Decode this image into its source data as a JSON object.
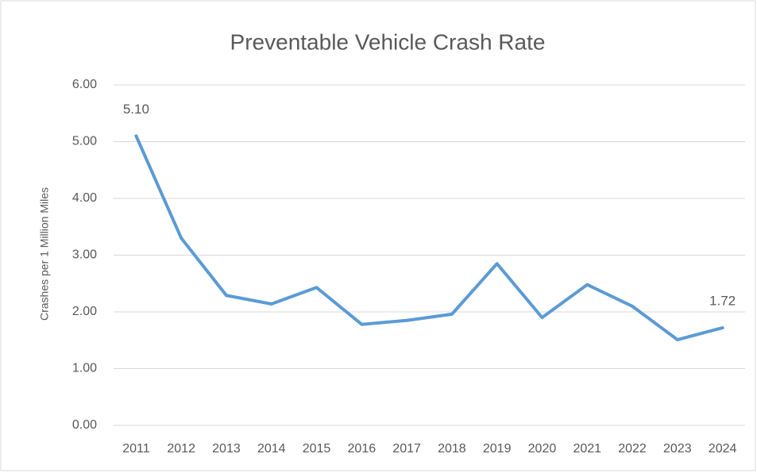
{
  "chart_data": {
    "type": "line",
    "title": "Preventable Vehicle Crash Rate",
    "y_label": "Crashes per 1 Million Miles",
    "categories": [
      "2011",
      "2012",
      "2013",
      "2014",
      "2015",
      "2016",
      "2017",
      "2018",
      "2019",
      "2020",
      "2021",
      "2022",
      "2023",
      "2024"
    ],
    "series": [
      {
        "name": "Preventable Vehicle Crash Rate",
        "color": "#5b9bd5",
        "values": [
          5.1,
          3.3,
          2.29,
          2.14,
          2.43,
          1.78,
          1.85,
          1.96,
          2.85,
          1.9,
          2.48,
          2.1,
          1.51,
          1.72
        ],
        "value_labels": [
          "5.10",
          null,
          null,
          null,
          null,
          null,
          null,
          null,
          null,
          null,
          null,
          null,
          null,
          "1.72"
        ]
      }
    ],
    "ylim": [
      0,
      6
    ],
    "yticks": [
      {
        "value": 0,
        "label": "0.00"
      },
      {
        "value": 1,
        "label": "1.00"
      },
      {
        "value": 2,
        "label": "2.00"
      },
      {
        "value": 3,
        "label": "3.00"
      },
      {
        "value": 4,
        "label": "4.00"
      },
      {
        "value": 5,
        "label": "5.00"
      },
      {
        "value": 6,
        "label": "6.00"
      }
    ],
    "grid": true
  }
}
